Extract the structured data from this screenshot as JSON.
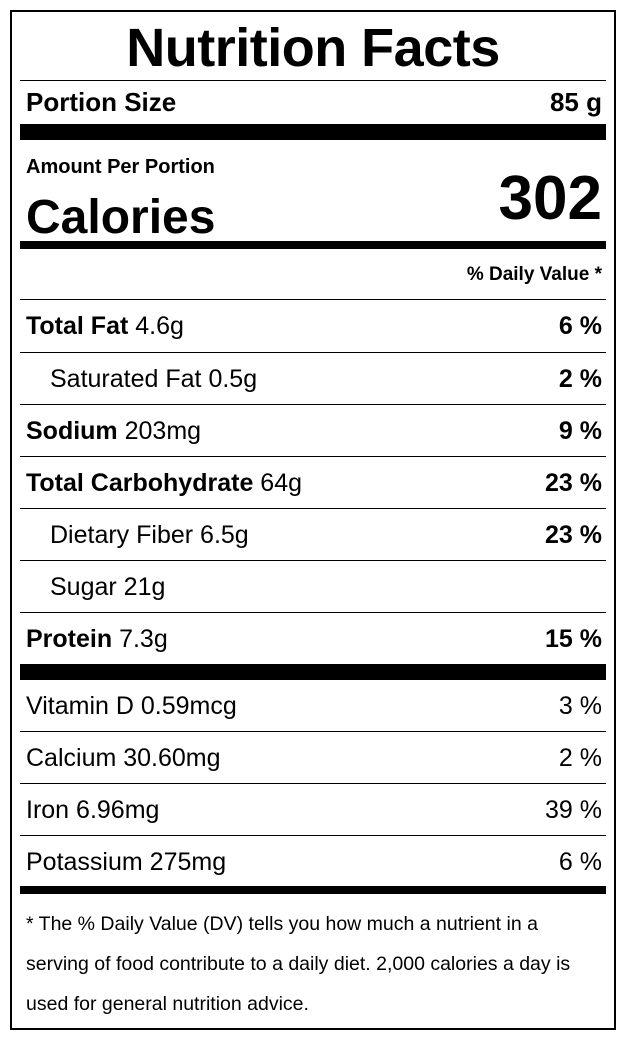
{
  "title": "Nutrition Facts",
  "portion": {
    "label": "Portion Size",
    "value": "85 g"
  },
  "calories": {
    "amount_label": "Amount Per Portion",
    "label": "Calories",
    "value": "302"
  },
  "daily_value_header": "% Daily Value *",
  "nutrients": [
    {
      "name": "Total Fat",
      "amount": "4.6g",
      "dv": "6 %"
    },
    {
      "name": "Saturated Fat",
      "amount": "0.5g",
      "dv": "2 %"
    },
    {
      "name": "Sodium",
      "amount": "203mg",
      "dv": "9 %"
    },
    {
      "name": "Total Carbohydrate",
      "amount": "64g",
      "dv": "23 %"
    },
    {
      "name": "Dietary Fiber",
      "amount": "6.5g",
      "dv": "23 %"
    },
    {
      "name": "Sugar",
      "amount": "21g",
      "dv": ""
    },
    {
      "name": "Protein",
      "amount": "7.3g",
      "dv": "15 %"
    }
  ],
  "vitamins": [
    {
      "name": "Vitamin D",
      "amount": "0.59mcg",
      "dv": "3 %"
    },
    {
      "name": "Calcium",
      "amount": "30.60mg",
      "dv": "2 %"
    },
    {
      "name": "Iron",
      "amount": "6.96mg",
      "dv": "39 %"
    },
    {
      "name": "Potassium",
      "amount": "275mg",
      "dv": "6 %"
    }
  ],
  "footnote": "* The % Daily Value (DV) tells you how much a nutrient in a serving of food contribute to a daily diet. 2,000 calories a day is used for general nutrition advice."
}
